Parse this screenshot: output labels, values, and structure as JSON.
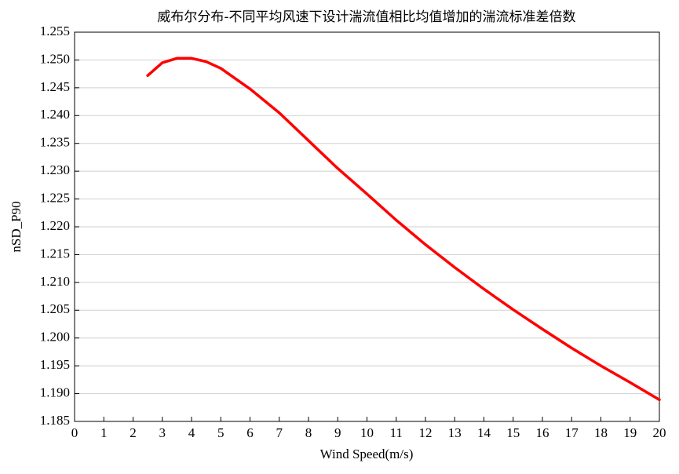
{
  "chart_data": {
    "type": "line",
    "title": "威布尔分布-不同平均风速下设计湍流值相比均值增加的湍流标准差倍数",
    "xlabel": "Wind Speed(m/s)",
    "ylabel": "nSD_P90",
    "x": [
      2.5,
      3,
      3.5,
      4,
      4.5,
      5,
      6,
      7,
      8,
      9,
      10,
      11,
      12,
      13,
      14,
      15,
      16,
      17,
      18,
      19,
      20
    ],
    "series": [
      {
        "name": "nSD_P90",
        "color": "#ff0000",
        "values": [
          1.2472,
          1.2495,
          1.2503,
          1.2503,
          1.2497,
          1.2485,
          1.2448,
          1.2405,
          1.2355,
          1.2305,
          1.2259,
          1.2212,
          1.2168,
          1.2127,
          1.2088,
          1.2051,
          1.2016,
          1.1982,
          1.195,
          1.192,
          1.1889
        ]
      }
    ],
    "xlim": [
      0,
      20
    ],
    "xticks": [
      0,
      1,
      2,
      3,
      4,
      5,
      6,
      7,
      8,
      9,
      10,
      11,
      12,
      13,
      14,
      15,
      16,
      17,
      18,
      19,
      20
    ],
    "ylim": [
      1.185,
      1.255
    ],
    "yticks": [
      1.185,
      {
        "value": 1.19,
        "label": "1.190"
      },
      1.195,
      {
        "value": 1.2,
        "label": "1.200"
      },
      1.205,
      {
        "value": 1.21,
        "label": "1.210"
      },
      1.215,
      {
        "value": 1.22,
        "label": "1.220"
      },
      1.225,
      {
        "value": 1.23,
        "label": "1.230"
      },
      1.235,
      {
        "value": 1.24,
        "label": "1.240"
      },
      1.245,
      {
        "value": 1.25,
        "label": "1.250"
      },
      1.255
    ],
    "grid": true
  }
}
